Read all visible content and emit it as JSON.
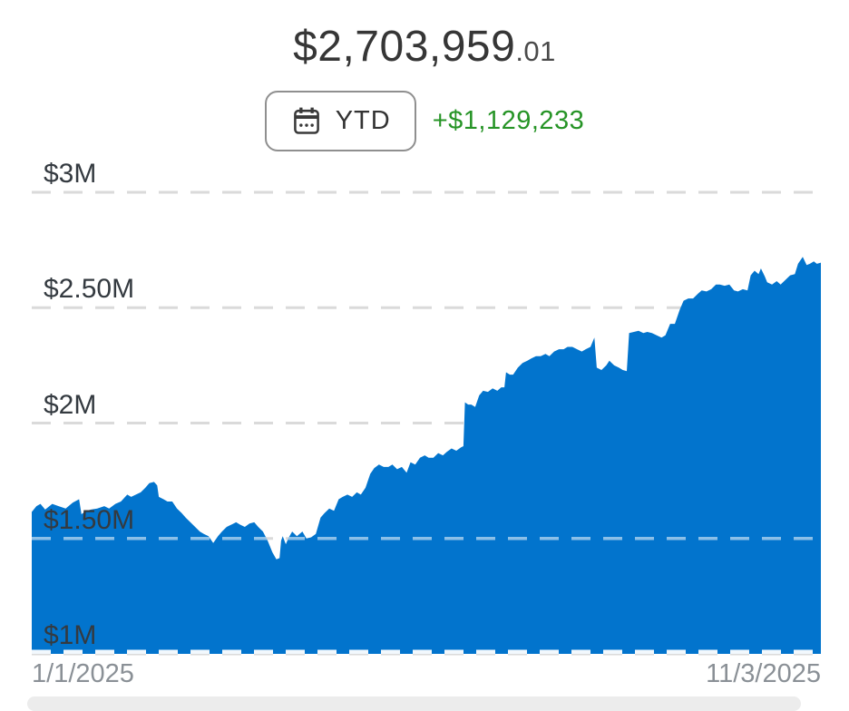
{
  "header": {
    "balance_main": "$2,703,959",
    "balance_cents": ".01",
    "range_label": "YTD",
    "gain_label": "+$1,129,233"
  },
  "colors": {
    "accent_blue": "#0274cd",
    "gain_green": "#269426",
    "grid_gray": "#dadada",
    "grid_white_in_area": "rgba(255,255,255,0.55)",
    "baseline_white": "#ffffff",
    "y_label_color": "#343a40",
    "date_gray": "#8a9096"
  },
  "chart_data": {
    "type": "area",
    "title": "Portfolio value, year to date",
    "xlabel": "",
    "ylabel": "",
    "unit": "$M",
    "grid": "dashed horizontal",
    "legend": "none",
    "x_range": [
      "1/1/2025",
      "11/3/2025"
    ],
    "y_tick_labels": [
      "$3M",
      "$2.50M",
      "$2M",
      "$1.50M",
      "$1M"
    ],
    "y_tick_values": [
      3,
      2.5,
      2,
      1.5,
      1
    ],
    "ylim": [
      1,
      3.17
    ],
    "end_value": "$2,703,959.01",
    "ytd_gain": "+$1,129,233",
    "points": [
      [
        0.0,
        1.615
      ],
      [
        0.006,
        1.64
      ],
      [
        0.011,
        1.65
      ],
      [
        0.017,
        1.625
      ],
      [
        0.026,
        1.65
      ],
      [
        0.034,
        1.64
      ],
      [
        0.043,
        1.63
      ],
      [
        0.052,
        1.655
      ],
      [
        0.06,
        1.67
      ],
      [
        0.063,
        1.605
      ],
      [
        0.069,
        1.62
      ],
      [
        0.075,
        1.625
      ],
      [
        0.083,
        1.63
      ],
      [
        0.092,
        1.64
      ],
      [
        0.098,
        1.63
      ],
      [
        0.106,
        1.65
      ],
      [
        0.113,
        1.66
      ],
      [
        0.121,
        1.69
      ],
      [
        0.126,
        1.68
      ],
      [
        0.132,
        1.69
      ],
      [
        0.138,
        1.7
      ],
      [
        0.144,
        1.72
      ],
      [
        0.149,
        1.74
      ],
      [
        0.155,
        1.745
      ],
      [
        0.159,
        1.73
      ],
      [
        0.161,
        1.68
      ],
      [
        0.167,
        1.67
      ],
      [
        0.172,
        1.66
      ],
      [
        0.178,
        1.66
      ],
      [
        0.184,
        1.63
      ],
      [
        0.19,
        1.61
      ],
      [
        0.195,
        1.59
      ],
      [
        0.201,
        1.57
      ],
      [
        0.207,
        1.55
      ],
      [
        0.213,
        1.53
      ],
      [
        0.218,
        1.52
      ],
      [
        0.224,
        1.51
      ],
      [
        0.23,
        1.48
      ],
      [
        0.236,
        1.51
      ],
      [
        0.241,
        1.53
      ],
      [
        0.247,
        1.55
      ],
      [
        0.253,
        1.56
      ],
      [
        0.259,
        1.57
      ],
      [
        0.264,
        1.56
      ],
      [
        0.27,
        1.55
      ],
      [
        0.276,
        1.565
      ],
      [
        0.282,
        1.57
      ],
      [
        0.287,
        1.55
      ],
      [
        0.293,
        1.53
      ],
      [
        0.299,
        1.49
      ],
      [
        0.305,
        1.44
      ],
      [
        0.31,
        1.41
      ],
      [
        0.314,
        1.415
      ],
      [
        0.316,
        1.49
      ],
      [
        0.318,
        1.51
      ],
      [
        0.322,
        1.475
      ],
      [
        0.325,
        1.5
      ],
      [
        0.33,
        1.53
      ],
      [
        0.336,
        1.51
      ],
      [
        0.343,
        1.53
      ],
      [
        0.348,
        1.5
      ],
      [
        0.354,
        1.505
      ],
      [
        0.36,
        1.52
      ],
      [
        0.366,
        1.59
      ],
      [
        0.371,
        1.61
      ],
      [
        0.377,
        1.63
      ],
      [
        0.383,
        1.62
      ],
      [
        0.389,
        1.67
      ],
      [
        0.394,
        1.68
      ],
      [
        0.4,
        1.69
      ],
      [
        0.406,
        1.68
      ],
      [
        0.412,
        1.7
      ],
      [
        0.417,
        1.69
      ],
      [
        0.423,
        1.72
      ],
      [
        0.429,
        1.78
      ],
      [
        0.434,
        1.805
      ],
      [
        0.44,
        1.82
      ],
      [
        0.446,
        1.81
      ],
      [
        0.452,
        1.81
      ],
      [
        0.457,
        1.82
      ],
      [
        0.463,
        1.8
      ],
      [
        0.469,
        1.81
      ],
      [
        0.475,
        1.785
      ],
      [
        0.48,
        1.83
      ],
      [
        0.486,
        1.82
      ],
      [
        0.492,
        1.85
      ],
      [
        0.498,
        1.86
      ],
      [
        0.503,
        1.85
      ],
      [
        0.509,
        1.85
      ],
      [
        0.515,
        1.87
      ],
      [
        0.521,
        1.86
      ],
      [
        0.526,
        1.875
      ],
      [
        0.532,
        1.89
      ],
      [
        0.538,
        1.88
      ],
      [
        0.544,
        1.895
      ],
      [
        0.547,
        1.9
      ],
      [
        0.549,
        2.09
      ],
      [
        0.553,
        2.08
      ],
      [
        0.557,
        2.08
      ],
      [
        0.562,
        2.07
      ],
      [
        0.567,
        2.12
      ],
      [
        0.572,
        2.14
      ],
      [
        0.578,
        2.135
      ],
      [
        0.584,
        2.15
      ],
      [
        0.59,
        2.14
      ],
      [
        0.595,
        2.155
      ],
      [
        0.599,
        2.155
      ],
      [
        0.601,
        2.22
      ],
      [
        0.606,
        2.21
      ],
      [
        0.61,
        2.21
      ],
      [
        0.616,
        2.24
      ],
      [
        0.622,
        2.26
      ],
      [
        0.628,
        2.27
      ],
      [
        0.633,
        2.28
      ],
      [
        0.639,
        2.29
      ],
      [
        0.645,
        2.29
      ],
      [
        0.651,
        2.3
      ],
      [
        0.656,
        2.29
      ],
      [
        0.662,
        2.31
      ],
      [
        0.668,
        2.32
      ],
      [
        0.674,
        2.32
      ],
      [
        0.679,
        2.33
      ],
      [
        0.685,
        2.33
      ],
      [
        0.691,
        2.32
      ],
      [
        0.697,
        2.31
      ],
      [
        0.702,
        2.32
      ],
      [
        0.708,
        2.33
      ],
      [
        0.713,
        2.37
      ],
      [
        0.716,
        2.24
      ],
      [
        0.722,
        2.23
      ],
      [
        0.728,
        2.25
      ],
      [
        0.732,
        2.27
      ],
      [
        0.738,
        2.25
      ],
      [
        0.744,
        2.24
      ],
      [
        0.749,
        2.23
      ],
      [
        0.754,
        2.225
      ],
      [
        0.757,
        2.39
      ],
      [
        0.763,
        2.395
      ],
      [
        0.769,
        2.4
      ],
      [
        0.775,
        2.39
      ],
      [
        0.78,
        2.395
      ],
      [
        0.786,
        2.39
      ],
      [
        0.792,
        2.38
      ],
      [
        0.798,
        2.37
      ],
      [
        0.803,
        2.38
      ],
      [
        0.809,
        2.43
      ],
      [
        0.815,
        2.43
      ],
      [
        0.821,
        2.49
      ],
      [
        0.826,
        2.53
      ],
      [
        0.832,
        2.54
      ],
      [
        0.838,
        2.54
      ],
      [
        0.844,
        2.56
      ],
      [
        0.849,
        2.575
      ],
      [
        0.855,
        2.57
      ],
      [
        0.861,
        2.58
      ],
      [
        0.867,
        2.6
      ],
      [
        0.872,
        2.6
      ],
      [
        0.878,
        2.595
      ],
      [
        0.884,
        2.6
      ],
      [
        0.89,
        2.575
      ],
      [
        0.895,
        2.57
      ],
      [
        0.901,
        2.58
      ],
      [
        0.907,
        2.575
      ],
      [
        0.911,
        2.64
      ],
      [
        0.916,
        2.66
      ],
      [
        0.921,
        2.645
      ],
      [
        0.924,
        2.67
      ],
      [
        0.929,
        2.635
      ],
      [
        0.932,
        2.61
      ],
      [
        0.938,
        2.6
      ],
      [
        0.944,
        2.615
      ],
      [
        0.949,
        2.6
      ],
      [
        0.955,
        2.62
      ],
      [
        0.961,
        2.64
      ],
      [
        0.967,
        2.645
      ],
      [
        0.971,
        2.69
      ],
      [
        0.977,
        2.72
      ],
      [
        0.982,
        2.685
      ],
      [
        0.986,
        2.69
      ],
      [
        0.991,
        2.7
      ],
      [
        0.995,
        2.69
      ],
      [
        1.0,
        2.695
      ]
    ]
  }
}
